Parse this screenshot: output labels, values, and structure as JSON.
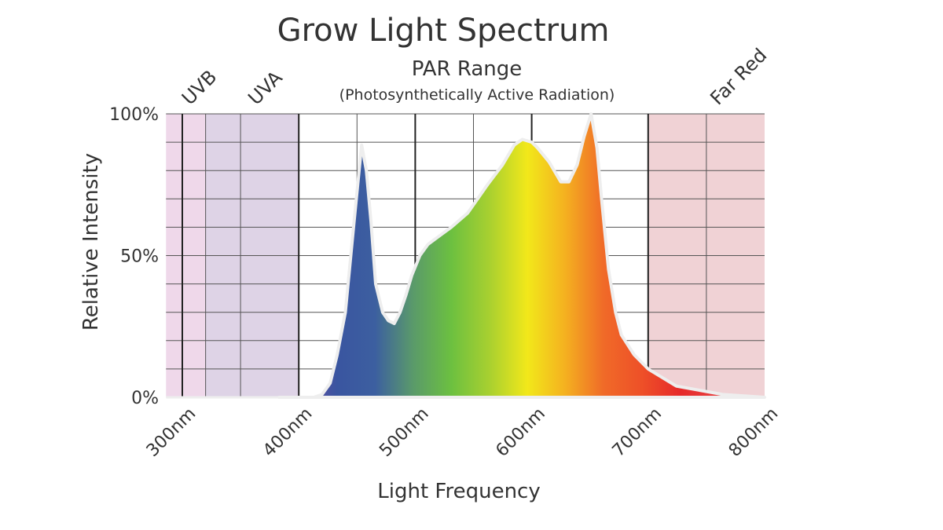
{
  "chart_data": {
    "type": "area",
    "title": "Grow Light Spectrum",
    "xlabel": "Light Frequency",
    "ylabel": "Relative Intensity",
    "xlim": [
      286,
      800
    ],
    "ylim": [
      0,
      100
    ],
    "x_ticks": [
      300,
      400,
      500,
      600,
      700,
      800
    ],
    "x_tick_labels": [
      "300nm",
      "400nm",
      "500nm",
      "600nm",
      "700nm",
      "800nm"
    ],
    "y_ticks": [
      0,
      50,
      100
    ],
    "y_tick_labels": [
      "0%",
      "50%",
      "100%"
    ],
    "grid": true,
    "bands": [
      {
        "label": "UVB",
        "from": 286,
        "to": 320,
        "color": "#efd8ea"
      },
      {
        "label": "UVA",
        "from": 320,
        "to": 400,
        "color": "#ded3e6"
      },
      {
        "label": "Far Red",
        "from": 700,
        "to": 800,
        "color": "#f0d2d5"
      }
    ],
    "par_label": "PAR Range",
    "par_sublabel": "(Photosynthetically Active Radiation)",
    "series": [
      {
        "x": [
          383,
          413,
          420,
          427,
          433,
          440,
          447,
          454,
          458,
          462,
          466,
          472,
          477,
          482,
          487,
          492,
          497,
          504,
          511,
          521,
          531,
          545,
          562,
          575,
          585,
          592,
          600,
          605,
          615,
          625,
          632,
          639,
          645,
          651,
          656,
          660,
          666,
          672,
          677,
          688,
          700,
          724,
          764,
          800
        ],
        "y": [
          0,
          0,
          1,
          5,
          15,
          30,
          60,
          89,
          80,
          62,
          40,
          30,
          27,
          26,
          30,
          36,
          43,
          50,
          54,
          57,
          60,
          65,
          75,
          82,
          89,
          91,
          90,
          88,
          83,
          76,
          76,
          82,
          92,
          100,
          88,
          70,
          45,
          30,
          22,
          15,
          10,
          4,
          1,
          0
        ]
      }
    ],
    "gradient_colors": [
      "#6a4aa0",
      "#3a55a0",
      "#3c5fa0",
      "#5a9a6a",
      "#6cc040",
      "#a8d030",
      "#f2e81a",
      "#f4b020",
      "#f06a28",
      "#ee5028",
      "#e62a2a",
      "#e84040"
    ]
  }
}
